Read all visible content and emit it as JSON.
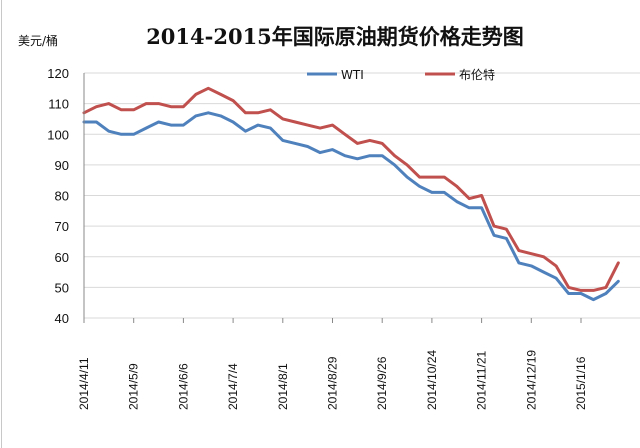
{
  "chart_data": {
    "type": "line",
    "title": "2014-2015年国际原油期货价格走势图",
    "ylabel": "美元/桶",
    "xlabel": "",
    "ylim": [
      40,
      120
    ],
    "yticks": [
      "40",
      "50",
      "60",
      "70",
      "80",
      "90",
      "100",
      "110",
      "120"
    ],
    "xticks": [
      "2014/4/11",
      "2014/5/9",
      "2014/6/6",
      "2014/7/4",
      "2014/8/1",
      "2014/8/29",
      "2014/9/26",
      "2014/10/24",
      "2014/11/21",
      "2014/12/19",
      "2015/1/16"
    ],
    "legend_position": "top-right",
    "series": [
      {
        "name": "WTI",
        "color": "#4f81bd",
        "points": [
          [
            "2014-04-11",
            104
          ],
          [
            "2014-04-18",
            104
          ],
          [
            "2014-04-25",
            101
          ],
          [
            "2014-05-02",
            100
          ],
          [
            "2014-05-09",
            100
          ],
          [
            "2014-05-16",
            102
          ],
          [
            "2014-05-23",
            104
          ],
          [
            "2014-05-30",
            103
          ],
          [
            "2014-06-06",
            103
          ],
          [
            "2014-06-13",
            106
          ],
          [
            "2014-06-20",
            107
          ],
          [
            "2014-06-27",
            106
          ],
          [
            "2014-07-04",
            104
          ],
          [
            "2014-07-11",
            101
          ],
          [
            "2014-07-18",
            103
          ],
          [
            "2014-07-25",
            102
          ],
          [
            "2014-08-01",
            98
          ],
          [
            "2014-08-08",
            97
          ],
          [
            "2014-08-15",
            96
          ],
          [
            "2014-08-22",
            94
          ],
          [
            "2014-08-29",
            95
          ],
          [
            "2014-09-05",
            93
          ],
          [
            "2014-09-12",
            92
          ],
          [
            "2014-09-19",
            93
          ],
          [
            "2014-09-26",
            93
          ],
          [
            "2014-10-03",
            90
          ],
          [
            "2014-10-10",
            86
          ],
          [
            "2014-10-17",
            83
          ],
          [
            "2014-10-24",
            81
          ],
          [
            "2014-10-31",
            81
          ],
          [
            "2014-11-07",
            78
          ],
          [
            "2014-11-14",
            76
          ],
          [
            "2014-11-21",
            76
          ],
          [
            "2014-11-28",
            67
          ],
          [
            "2014-12-05",
            66
          ],
          [
            "2014-12-12",
            58
          ],
          [
            "2014-12-19",
            57
          ],
          [
            "2014-12-26",
            55
          ],
          [
            "2015-01-02",
            53
          ],
          [
            "2015-01-09",
            48
          ],
          [
            "2015-01-16",
            48
          ],
          [
            "2015-01-23",
            46
          ],
          [
            "2015-01-30",
            48
          ],
          [
            "2015-02-06",
            52
          ]
        ]
      },
      {
        "name": "布伦特",
        "color": "#c0504d",
        "points": [
          [
            "2014-04-11",
            107
          ],
          [
            "2014-04-18",
            109
          ],
          [
            "2014-04-25",
            110
          ],
          [
            "2014-05-02",
            108
          ],
          [
            "2014-05-09",
            108
          ],
          [
            "2014-05-16",
            110
          ],
          [
            "2014-05-23",
            110
          ],
          [
            "2014-05-30",
            109
          ],
          [
            "2014-06-06",
            109
          ],
          [
            "2014-06-13",
            113
          ],
          [
            "2014-06-20",
            115
          ],
          [
            "2014-06-27",
            113
          ],
          [
            "2014-07-04",
            111
          ],
          [
            "2014-07-11",
            107
          ],
          [
            "2014-07-18",
            107
          ],
          [
            "2014-07-25",
            108
          ],
          [
            "2014-08-01",
            105
          ],
          [
            "2014-08-08",
            104
          ],
          [
            "2014-08-15",
            103
          ],
          [
            "2014-08-22",
            102
          ],
          [
            "2014-08-29",
            103
          ],
          [
            "2014-09-05",
            100
          ],
          [
            "2014-09-12",
            97
          ],
          [
            "2014-09-19",
            98
          ],
          [
            "2014-09-26",
            97
          ],
          [
            "2014-10-03",
            93
          ],
          [
            "2014-10-10",
            90
          ],
          [
            "2014-10-17",
            86
          ],
          [
            "2014-10-24",
            86
          ],
          [
            "2014-10-31",
            86
          ],
          [
            "2014-11-07",
            83
          ],
          [
            "2014-11-14",
            79
          ],
          [
            "2014-11-21",
            80
          ],
          [
            "2014-11-28",
            70
          ],
          [
            "2014-12-05",
            69
          ],
          [
            "2014-12-12",
            62
          ],
          [
            "2014-12-19",
            61
          ],
          [
            "2014-12-26",
            60
          ],
          [
            "2015-01-02",
            57
          ],
          [
            "2015-01-09",
            50
          ],
          [
            "2015-01-16",
            49
          ],
          [
            "2015-01-23",
            49
          ],
          [
            "2015-01-30",
            50
          ],
          [
            "2015-02-06",
            58
          ]
        ]
      }
    ]
  }
}
